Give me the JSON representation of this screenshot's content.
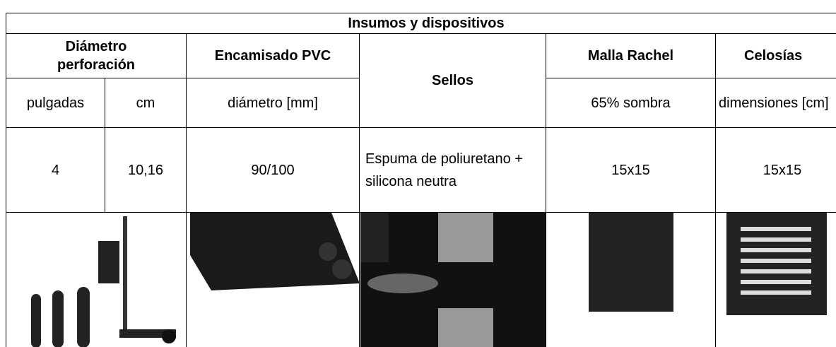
{
  "table": {
    "title": "Insumos y dispositivos",
    "headers": [
      "Diámetro perforación",
      "Encamisado PVC",
      "Sellos",
      "Malla Rachel",
      "Celosías"
    ],
    "units": [
      "pulgadas",
      "cm",
      "diámetro [mm]",
      "65% sombra",
      "dimensiones [cm]"
    ],
    "row": [
      "4",
      "10,16",
      "90/100",
      "Espuma de poliuretano + silicona neutra",
      "15x15",
      "15x15"
    ]
  }
}
